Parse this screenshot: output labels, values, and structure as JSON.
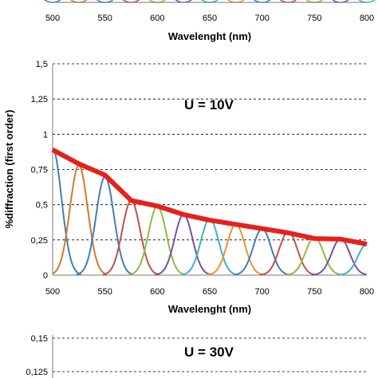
{
  "chart_data": [
    {
      "type": "line",
      "xlabel": "Wavelenght (nm)",
      "x_ticks": [
        "500",
        "550",
        "600",
        "650",
        "700",
        "750",
        "800"
      ],
      "xlim": [
        500,
        800
      ]
    },
    {
      "type": "line",
      "annotation": "U = 10V",
      "xlabel": "Wavelenght (nm)",
      "ylabel": "%diffraction (first order)",
      "xlim": [
        500,
        800
      ],
      "ylim": [
        0,
        1.5
      ],
      "grid": true,
      "x_ticks": [
        "500",
        "550",
        "600",
        "650",
        "700",
        "750",
        "800"
      ],
      "y_ticks": [
        "0",
        "0,25",
        "0,5",
        "0,75",
        "1",
        "1,25",
        "1,5"
      ],
      "envelope": {
        "color": "#e8201c",
        "x": [
          500,
          525,
          550,
          575,
          600,
          625,
          650,
          675,
          700,
          725,
          750,
          775,
          800
        ],
        "y": [
          0.89,
          0.79,
          0.71,
          0.53,
          0.49,
          0.43,
          0.39,
          0.36,
          0.33,
          0.3,
          0.26,
          0.255,
          0.22
        ]
      },
      "series": [
        {
          "color": "#3f7fb5",
          "center": 500,
          "peak": 0.9
        },
        {
          "color": "#d47a2a",
          "center": 525,
          "peak": 0.78
        },
        {
          "color": "#3f7fb5",
          "center": 550,
          "peak": 0.7
        },
        {
          "color": "#c0504d",
          "center": 575,
          "peak": 0.53
        },
        {
          "color": "#8fbc3f",
          "center": 600,
          "peak": 0.49
        },
        {
          "color": "#7a4fa0",
          "center": 625,
          "peak": 0.43
        },
        {
          "color": "#3fb0c8",
          "center": 650,
          "peak": 0.4
        },
        {
          "color": "#f0922f",
          "center": 675,
          "peak": 0.36
        },
        {
          "color": "#3f7fb5",
          "center": 700,
          "peak": 0.33
        },
        {
          "color": "#c0504d",
          "center": 725,
          "peak": 0.31
        },
        {
          "color": "#8fbc3f",
          "center": 750,
          "peak": 0.27
        },
        {
          "color": "#7a4fa0",
          "center": 775,
          "peak": 0.26
        },
        {
          "color": "#3fb0c8",
          "center": 800,
          "peak": 0.22
        }
      ]
    },
    {
      "type": "line",
      "annotation": "U = 30V",
      "y_ticks": [
        "0,15",
        "0,125"
      ],
      "grid": true
    }
  ]
}
